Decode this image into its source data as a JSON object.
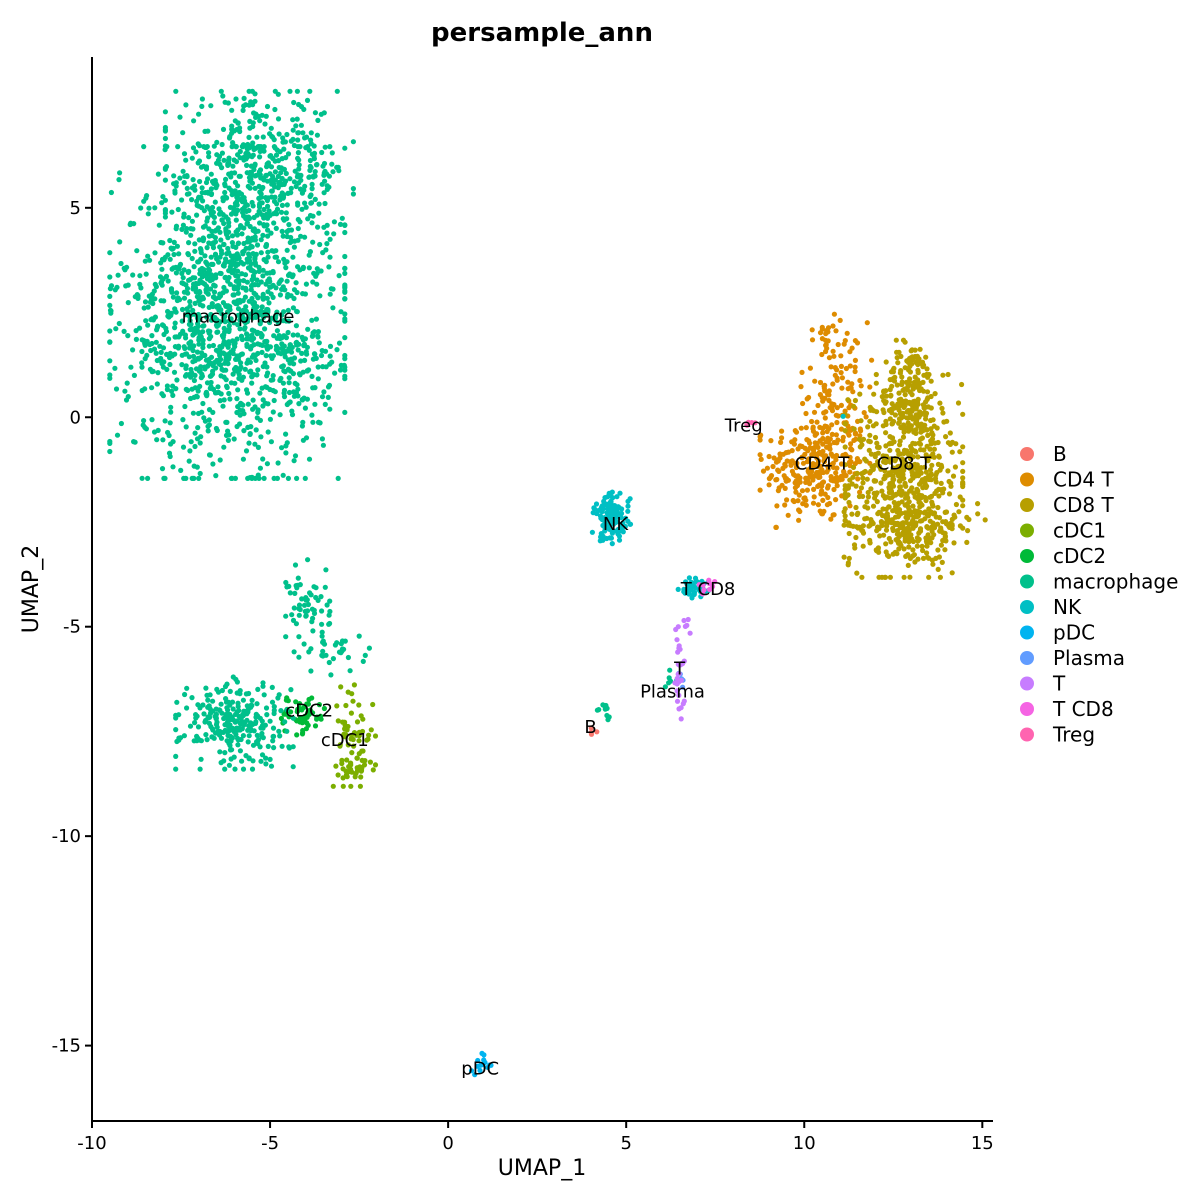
{
  "chart_data": {
    "type": "scatter",
    "title": "persample_ann",
    "xlabel": "UMAP_1",
    "ylabel": "UMAP_2",
    "xlim": [
      -10,
      15.3
    ],
    "ylim": [
      -16.8,
      8.6
    ],
    "xticks": [
      -10,
      -5,
      0,
      5,
      10,
      15
    ],
    "yticks": [
      -15,
      -10,
      -5,
      0,
      5
    ],
    "xtick_labels": [
      "-10",
      "-5",
      "0",
      "5",
      "10",
      "15"
    ],
    "ytick_labels": [
      "-15",
      "-10",
      "-5",
      "0",
      "5"
    ],
    "grid": false,
    "legend_position": "right",
    "series": [
      {
        "name": "B",
        "color": "#F8766D",
        "clusters": [
          {
            "cx": 4.0,
            "cy": -7.4,
            "sx": 0.08,
            "sy": 0.15,
            "n": 4
          }
        ]
      },
      {
        "name": "CD4 T",
        "color": "#DE8C00",
        "clusters": [
          {
            "cx": 10.3,
            "cy": -1.2,
            "sx": 0.7,
            "sy": 0.65,
            "n": 280
          },
          {
            "cx": 10.9,
            "cy": 0.7,
            "sx": 0.45,
            "sy": 0.8,
            "n": 110
          },
          {
            "cx": 10.6,
            "cy": 1.9,
            "sx": 0.12,
            "sy": 0.18,
            "n": 10
          }
        ]
      },
      {
        "name": "CD8 T",
        "color": "#B79F00",
        "clusters": [
          {
            "cx": 12.8,
            "cy": -1.4,
            "sx": 0.75,
            "sy": 1.1,
            "n": 600
          },
          {
            "cx": 13.0,
            "cy": 0.7,
            "sx": 0.35,
            "sy": 0.55,
            "n": 140
          },
          {
            "cx": 13.1,
            "cy": -2.6,
            "sx": 0.9,
            "sy": 0.35,
            "n": 150
          }
        ]
      },
      {
        "name": "cDC1",
        "color": "#7CAE00",
        "clusters": [
          {
            "cx": -2.7,
            "cy": -7.6,
            "sx": 0.3,
            "sy": 0.55,
            "n": 60
          },
          {
            "cx": -2.6,
            "cy": -8.4,
            "sx": 0.25,
            "sy": 0.12,
            "n": 30
          }
        ]
      },
      {
        "name": "cDC2",
        "color": "#00BA38",
        "clusters": [
          {
            "cx": -4.1,
            "cy": -7.1,
            "sx": 0.35,
            "sy": 0.22,
            "n": 60
          }
        ]
      },
      {
        "name": "macrophage",
        "color": "#00C08B",
        "clusters": [
          {
            "cx": -6.2,
            "cy": 2.5,
            "sx": 1.5,
            "sy": 1.8,
            "n": 1400
          },
          {
            "cx": -5.3,
            "cy": 5.8,
            "sx": 1.2,
            "sy": 0.9,
            "n": 450
          },
          {
            "cx": -4.1,
            "cy": 1.2,
            "sx": 0.45,
            "sy": 0.6,
            "n": 60
          },
          {
            "cx": -6.0,
            "cy": -7.3,
            "sx": 0.75,
            "sy": 0.5,
            "n": 260
          },
          {
            "cx": -3.9,
            "cy": -4.5,
            "sx": 0.3,
            "sy": 0.5,
            "n": 60
          },
          {
            "cx": -3.2,
            "cy": -5.6,
            "sx": 0.45,
            "sy": 0.25,
            "n": 30
          },
          {
            "cx": 4.4,
            "cy": -7.1,
            "sx": 0.12,
            "sy": 0.15,
            "n": 10
          },
          {
            "cx": 6.3,
            "cy": -6.2,
            "sx": 0.12,
            "sy": 0.15,
            "n": 6
          }
        ]
      },
      {
        "name": "NK",
        "color": "#00BFC4",
        "clusters": [
          {
            "cx": 4.6,
            "cy": -2.4,
            "sx": 0.25,
            "sy": 0.28,
            "n": 120
          },
          {
            "cx": 6.9,
            "cy": -4.1,
            "sx": 0.2,
            "sy": 0.12,
            "n": 40
          },
          {
            "cx": 11.1,
            "cy": 0.05,
            "sx": 0.02,
            "sy": 0.02,
            "n": 1
          }
        ]
      },
      {
        "name": "pDC",
        "color": "#00B4F0",
        "clusters": [
          {
            "cx": 0.9,
            "cy": -15.45,
            "sx": 0.15,
            "sy": 0.12,
            "n": 14
          }
        ]
      },
      {
        "name": "Plasma",
        "color": "#619CFF",
        "clusters": [
          {
            "cx": 6.55,
            "cy": -6.3,
            "sx": 0.05,
            "sy": 0.25,
            "n": 6
          }
        ]
      },
      {
        "name": "T",
        "color": "#C77CFF",
        "clusters": [
          {
            "cx": 6.5,
            "cy": -6.1,
            "sx": 0.06,
            "sy": 0.5,
            "n": 30
          },
          {
            "cx": 6.7,
            "cy": -5.0,
            "sx": 0.07,
            "sy": 0.2,
            "n": 5
          }
        ]
      },
      {
        "name": "T CD8",
        "color": "#F564E3",
        "clusters": [
          {
            "cx": 7.2,
            "cy": -4.1,
            "sx": 0.15,
            "sy": 0.1,
            "n": 10
          }
        ]
      },
      {
        "name": "Treg",
        "color": "#FF64B0",
        "clusters": [
          {
            "cx": 8.4,
            "cy": -0.15,
            "sx": 0.1,
            "sy": 0.05,
            "n": 5
          }
        ]
      }
    ],
    "annotations": [
      {
        "text": "macrophage",
        "x": -5.9,
        "y": 2.4
      },
      {
        "text": "Treg",
        "x": 8.3,
        "y": -0.2
      },
      {
        "text": "CD4 T",
        "x": 10.5,
        "y": -1.1
      },
      {
        "text": "CD8 T",
        "x": 12.8,
        "y": -1.1
      },
      {
        "text": "NK",
        "x": 4.7,
        "y": -2.55
      },
      {
        "text": "T CD8",
        "x": 7.3,
        "y": -4.1
      },
      {
        "text": "T",
        "x": 6.5,
        "y": -6.0
      },
      {
        "text": "Plasma",
        "x": 6.3,
        "y": -6.55
      },
      {
        "text": "B",
        "x": 4.0,
        "y": -7.4
      },
      {
        "text": "cDC2",
        "x": -3.9,
        "y": -7.0
      },
      {
        "text": "cDC1",
        "x": -2.9,
        "y": -7.7
      },
      {
        "text": "pDC",
        "x": 0.9,
        "y": -15.55
      }
    ]
  }
}
